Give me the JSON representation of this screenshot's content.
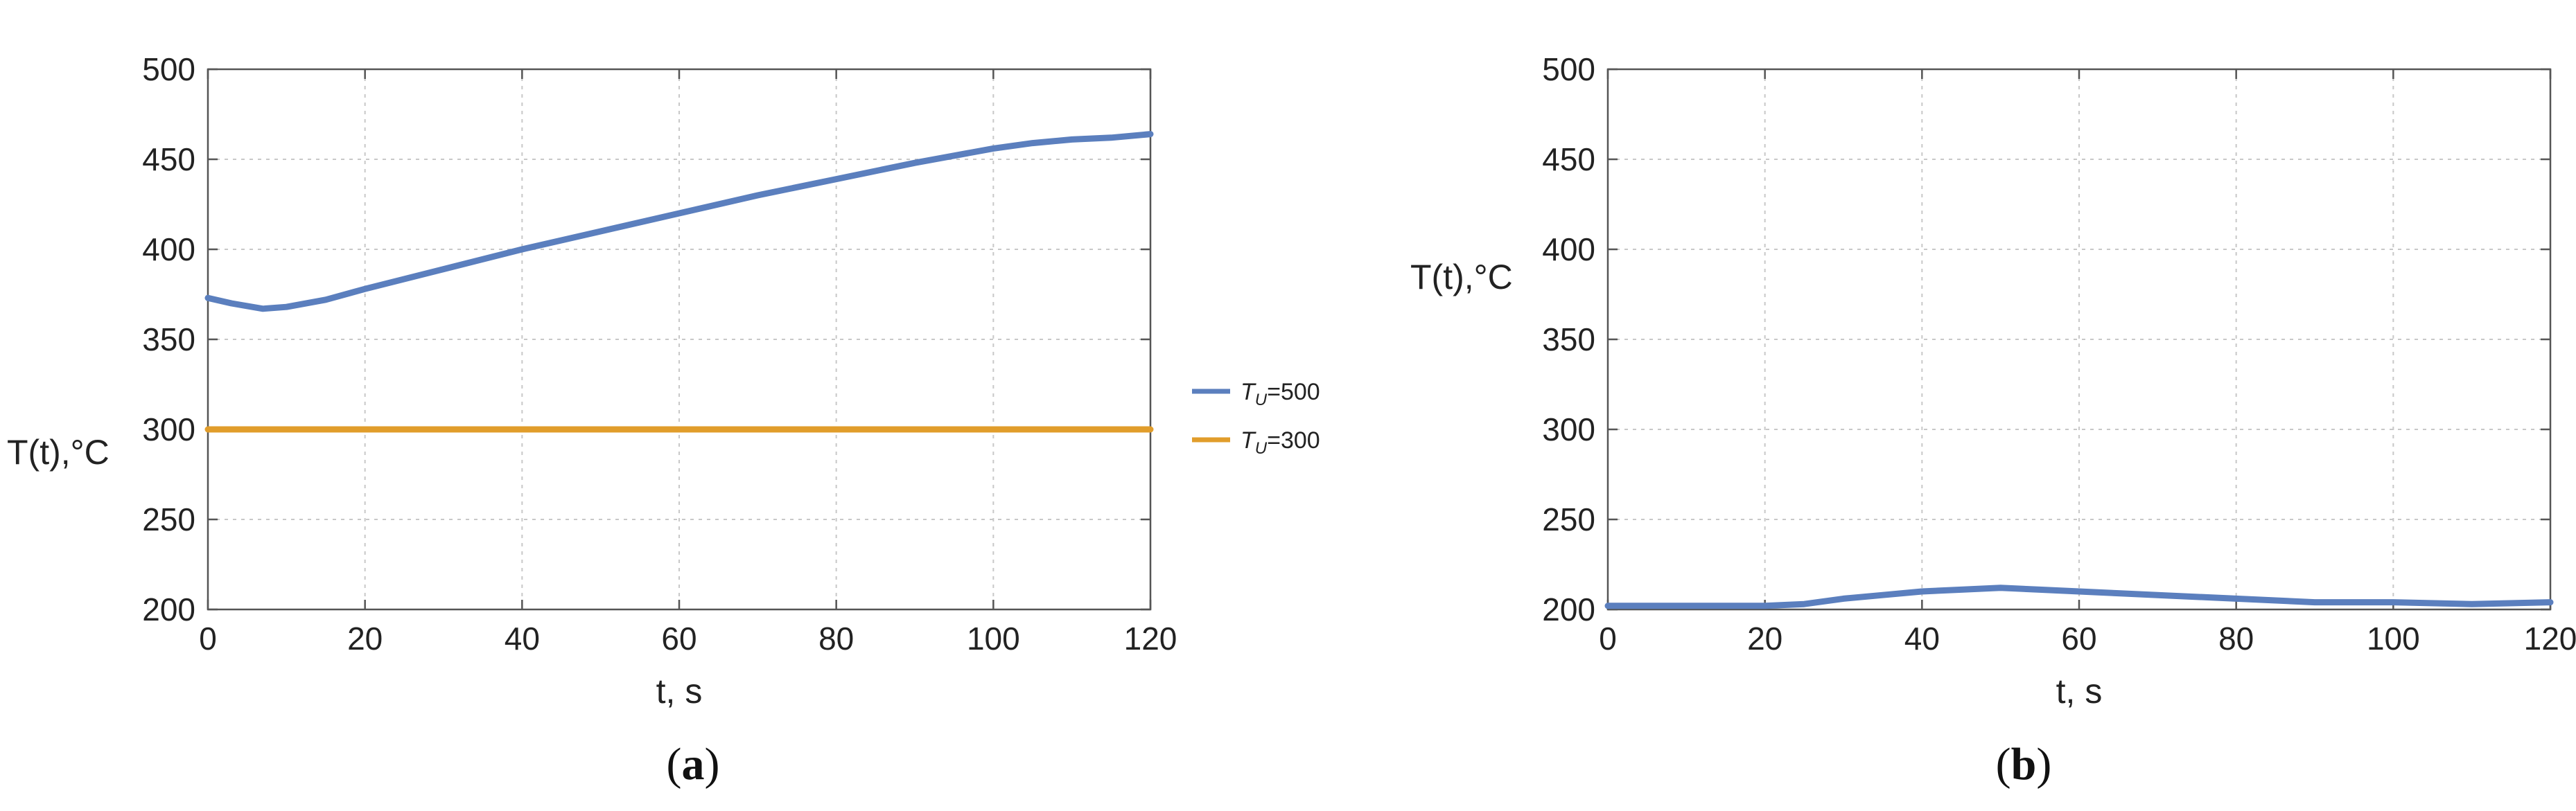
{
  "chart_data": [
    {
      "type": "line",
      "panel": "a",
      "caption": {
        "open": "(",
        "letter": "a",
        "close": ")"
      },
      "xlabel": "t, s",
      "ylabel": "T(t),°C",
      "xlim": [
        0,
        120
      ],
      "ylim": [
        200,
        500
      ],
      "xticks": [
        "0",
        "20",
        "40",
        "60",
        "80",
        "100",
        "120"
      ],
      "yticks": [
        "200",
        "250",
        "300",
        "350",
        "400",
        "450",
        "500"
      ],
      "grid": true,
      "legend_position": "right",
      "series": [
        {
          "name": "T_U=500",
          "legend_main": "T",
          "legend_sub": "U",
          "legend_value": "=500",
          "color": "#5b7fbe",
          "x": [
            0,
            3,
            7,
            10,
            15,
            20,
            30,
            40,
            50,
            60,
            70,
            80,
            90,
            100,
            105,
            110,
            115,
            120
          ],
          "y": [
            373,
            370,
            367,
            368,
            372,
            378,
            389,
            400,
            410,
            420,
            430,
            439,
            448,
            456,
            459,
            461,
            462,
            464
          ]
        },
        {
          "name": "T_U=300",
          "legend_main": "T",
          "legend_sub": "U",
          "legend_value": "=300",
          "color": "#e19d2b",
          "x": [
            0,
            20,
            40,
            60,
            80,
            100,
            120
          ],
          "y": [
            300,
            300,
            300,
            300,
            300,
            300,
            300
          ]
        }
      ]
    },
    {
      "type": "line",
      "panel": "b",
      "caption": {
        "open": "(",
        "letter": "b",
        "close": ")"
      },
      "xlabel": "t, s",
      "ylabel": "T(t),°C",
      "xlim": [
        0,
        120
      ],
      "ylim": [
        200,
        500
      ],
      "xticks": [
        "0",
        "20",
        "40",
        "60",
        "80",
        "100",
        "120"
      ],
      "yticks": [
        "200",
        "250",
        "300",
        "350",
        "400",
        "450",
        "500"
      ],
      "grid": true,
      "series": [
        {
          "color": "#5b7fbe",
          "x": [
            0,
            10,
            20,
            25,
            30,
            35,
            40,
            45,
            50,
            55,
            60,
            65,
            70,
            80,
            90,
            100,
            110,
            120
          ],
          "y": [
            202,
            202,
            202,
            203,
            206,
            208,
            210,
            211,
            212,
            211,
            210,
            209,
            208,
            206,
            204,
            204,
            203,
            204
          ]
        }
      ]
    }
  ]
}
